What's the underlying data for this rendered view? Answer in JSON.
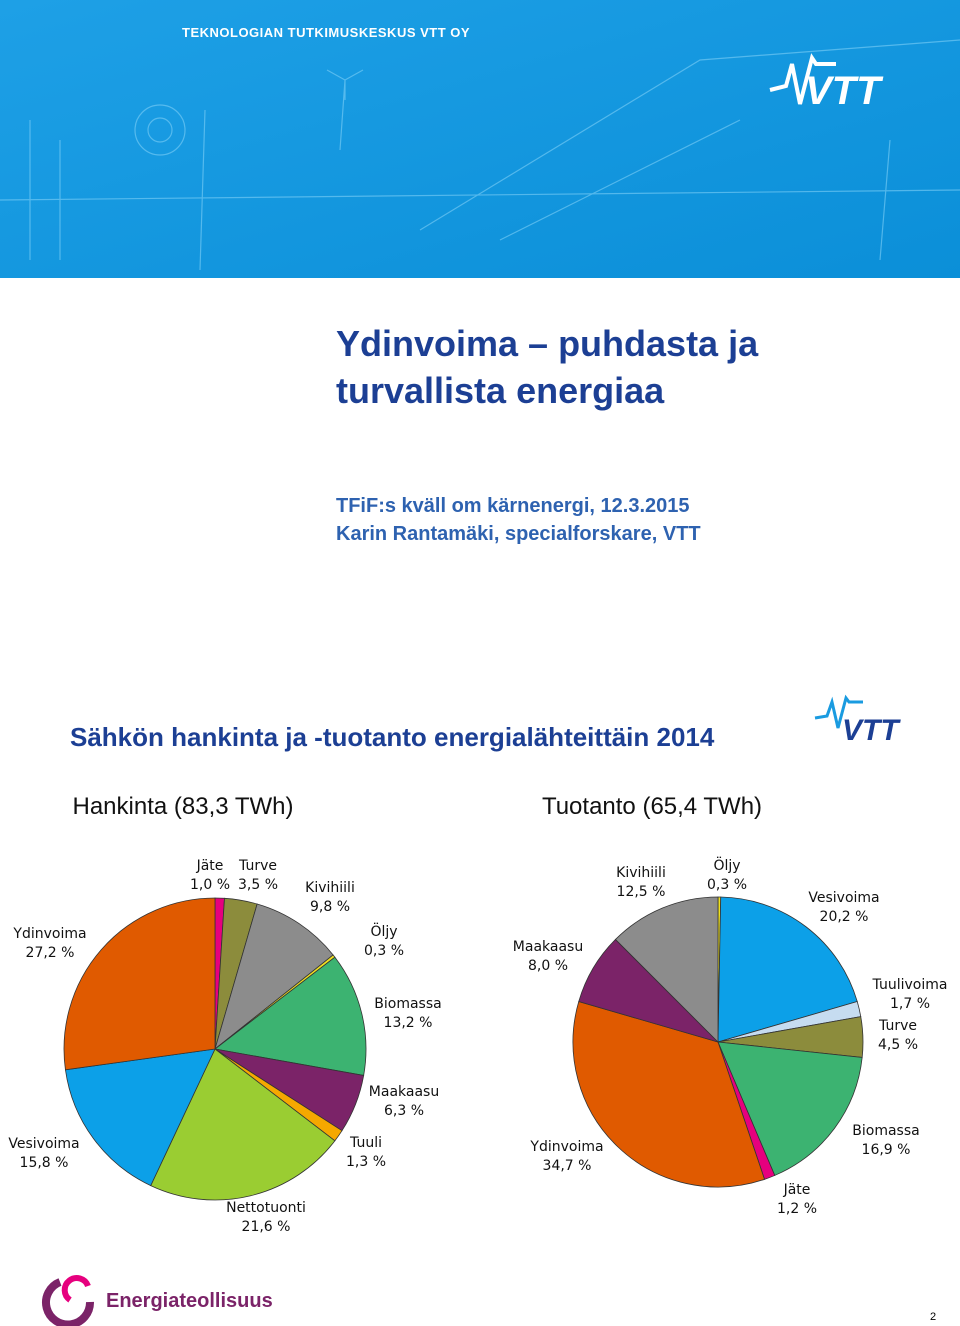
{
  "header": {
    "organization": "TEKNOLOGIAN TUTKIMUSKESKUS VTT OY",
    "logo": "VTT"
  },
  "title": [
    "Ydinvoima – puhdasta ja",
    "turvallista energiaa"
  ],
  "subtitle": [
    "TFiF:s kväll om kärnenergi, 12.3.2015",
    "Karin Rantamäki, specialforskare, VTT"
  ],
  "slide_title": "Sähkön hankinta ja -tuotanto energialähteittäin 2014",
  "slide_logo": "VTT",
  "chart_data": [
    {
      "type": "pie",
      "title": "Hankinta (83,3 TWh)",
      "categories": [
        "Jäte",
        "Turve",
        "Kivihiili",
        "Öljy",
        "Biomassa",
        "Maakaasu",
        "Tuuli",
        "Nettotuonti",
        "Vesivoima",
        "Ydinvoima"
      ],
      "values": [
        1.0,
        3.5,
        9.8,
        0.3,
        13.2,
        6.3,
        1.3,
        21.6,
        15.8,
        27.2
      ],
      "value_labels": [
        "1,0 %",
        "3,5 %",
        "9,8 %",
        "0,3 %",
        "13,2 %",
        "6,3 %",
        "1,3 %",
        "21,6 %",
        "15,8 %",
        "27,2 %"
      ],
      "colors": [
        "#e6007e",
        "#8c8c3c",
        "#8c8c8c",
        "#f0e020",
        "#3cb371",
        "#7b2368",
        "#f5a800",
        "#9acd32",
        "#0ca0e8",
        "#e05a00"
      ]
    },
    {
      "type": "pie",
      "title": "Tuotanto (65,4 TWh)",
      "categories": [
        "Öljy",
        "Vesivoima",
        "Tuulivoima",
        "Turve",
        "Biomassa",
        "Jäte",
        "Ydinvoima",
        "Maakaasu",
        "Kivihiili"
      ],
      "values": [
        0.3,
        20.2,
        1.7,
        4.5,
        16.9,
        1.2,
        34.7,
        8.0,
        12.5
      ],
      "value_labels": [
        "0,3 %",
        "20,2 %",
        "1,7 %",
        "4,5 %",
        "16,9 %",
        "1,2 %",
        "34,7 %",
        "8,0 %",
        "12,5 %"
      ],
      "colors": [
        "#f0e020",
        "#0ca0e8",
        "#c6dcf0",
        "#8c8c3c",
        "#3cb371",
        "#e6007e",
        "#e05a00",
        "#7b2368",
        "#8c8c8c"
      ]
    }
  ],
  "footer": {
    "logo": "Energiateollisuus",
    "page": "2"
  }
}
